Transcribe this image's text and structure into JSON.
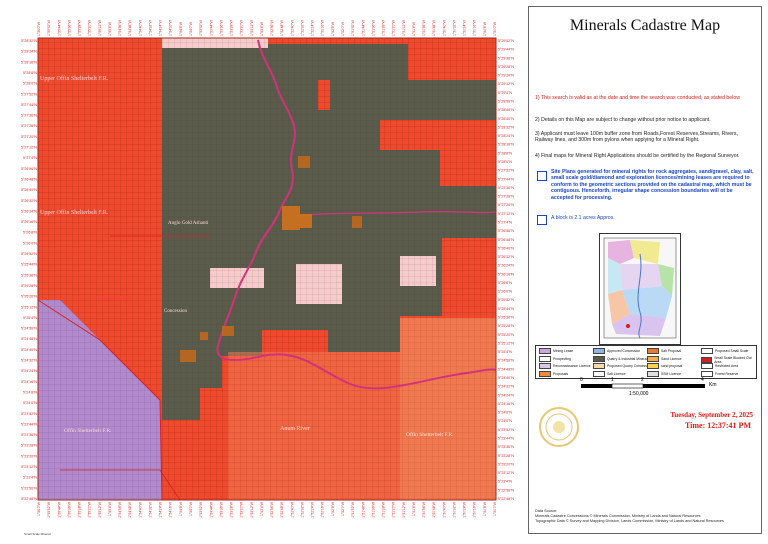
{
  "map": {
    "colors": {
      "cadastre_grid": "#ef4a2e",
      "grid_line": "#b02a18",
      "concession_dark": "#5b5b4c",
      "river": "#d0337a",
      "pink_zone": "#f2c6c6",
      "purple_zone": "#a98ac9",
      "orange_zone": "#ee7a4e",
      "outline": "#d82020"
    },
    "lat_labels_left": [
      "5°28'32\"N",
      "5°28'24\"N",
      "5°28'16\"N",
      "5°28'8\"N",
      "5°28'0\"N",
      "5°27'52\"N",
      "5°27'44\"N",
      "5°27'36\"N",
      "5°27'28\"N",
      "5°27'20\"N",
      "5°27'12\"N",
      "5°27'4\"N",
      "5°26'56\"N",
      "5°26'48\"N",
      "5°26'40\"N",
      "5°26'32\"N",
      "5°26'24\"N",
      "5°26'16\"N",
      "5°26'8\"N",
      "5°26'0\"N",
      "5°25'52\"N",
      "5°25'44\"N",
      "5°25'36\"N",
      "5°25'28\"N",
      "5°25'20\"N",
      "5°25'12\"N",
      "5°25'4\"N",
      "5°24'56\"N",
      "5°24'48\"N",
      "5°24'40\"N",
      "5°24'32\"N",
      "5°24'24\"N",
      "5°24'16\"N",
      "5°24'8\"N",
      "5°24'0\"N",
      "5°23'52\"N",
      "5°23'44\"N",
      "5°23'36\"N",
      "5°23'28\"N",
      "5°23'20\"N",
      "5°23'12\"N",
      "5°23'4\"N",
      "5°22'56\"N",
      "5°22'48\"N"
    ],
    "lat_labels_right": [
      "5°29'52\"N",
      "5°29'44\"N",
      "5°29'36\"N",
      "5°29'28\"N",
      "5°29'20\"N",
      "5°29'12\"N",
      "5°29'4\"N",
      "5°28'56\"N",
      "5°28'48\"N",
      "5°28'40\"N",
      "5°28'32\"N",
      "5°28'24\"N",
      "5°28'16\"N",
      "5°28'8\"N",
      "5°28'0\"N",
      "5°27'52\"N",
      "5°27'44\"N",
      "5°27'36\"N",
      "5°27'28\"N",
      "5°27'20\"N",
      "5°27'12\"N",
      "5°27'4\"N",
      "5°26'56\"N",
      "5°26'48\"N",
      "5°26'40\"N",
      "5°26'32\"N",
      "5°26'24\"N",
      "5°26'16\"N",
      "5°26'8\"N",
      "5°26'0\"N",
      "5°25'52\"N",
      "5°25'44\"N",
      "5°25'36\"N",
      "5°25'28\"N",
      "5°25'20\"N",
      "5°25'12\"N",
      "5°25'4\"N",
      "5°24'56\"N",
      "5°24'48\"N",
      "5°24'40\"N",
      "5°24'32\"N",
      "5°24'24\"N",
      "5°24'16\"N",
      "5°24'8\"N",
      "5°24'0\"N",
      "5°23'52\"N",
      "5°23'44\"N",
      "5°23'36\"N",
      "5°23'28\"N",
      "5°23'20\"N",
      "5°23'12\"N",
      "5°23'4\"N",
      "5°22'56\"N",
      "5°22'48\"N"
    ],
    "lon_labels": [
      "1°56'0\"W",
      "1°55'52\"W",
      "1°55'44\"W",
      "1°55'36\"W",
      "1°55'28\"W",
      "1°55'20\"W",
      "1°55'12\"W",
      "1°55'4\"W",
      "1°54'56\"W",
      "1°54'48\"W",
      "1°54'40\"W",
      "1°54'32\"W",
      "1°54'24\"W",
      "1°54'16\"W",
      "1°54'8\"W",
      "1°54'0\"W",
      "1°53'52\"W",
      "1°53'44\"W",
      "1°53'36\"W",
      "1°53'28\"W",
      "1°53'20\"W",
      "1°53'12\"W",
      "1°53'4\"W",
      "1°52'56\"W",
      "1°52'48\"W",
      "1°52'40\"W",
      "1°52'32\"W",
      "1°52'24\"W",
      "1°52'16\"W",
      "1°52'8\"W",
      "1°52'0\"W",
      "1°51'52\"W",
      "1°51'44\"W",
      "1°51'36\"W",
      "1°51'28\"W",
      "1°51'20\"W",
      "1°51'12\"W",
      "1°51'4\"W",
      "1°50'56\"W",
      "1°50'48\"W",
      "1°50'40\"W",
      "1°50'32\"W",
      "1°50'24\"W",
      "1°50'16\"W",
      "1°50'8\"W",
      "1°50'0\"W"
    ],
    "place_labels": [
      "Upper Offin Shelterbelt F.R.",
      "Anglo Gold Ashanti",
      "Mining Lease",
      "Concession",
      "Anum River",
      "Offin Shelterbelt F.R."
    ],
    "footer_label": "Small Scale Mineral"
  },
  "panel": {
    "title": "Minerals Cadastre Map",
    "notes": [
      {
        "num": "1)",
        "text": "This search is valid as at the date and time the search was conducted, as stated below"
      },
      {
        "num": "2)",
        "text": "Details on this Map are subject to change without prior notice to applicant."
      },
      {
        "num": "3)",
        "text": "Applicant must leave  100m buffer zone from Roads,Forest Reserves,Streams, Rivers, Railway lines, and 300m from pylons when applying for a Mineral Right."
      },
      {
        "num": "4)",
        "text": "Final maps for Mineral Right Applications should be certified by the Regional Surveyor."
      }
    ],
    "site_plans_note": "Site Plans  generated for mineral rights for rock aggregates, sand/gravel, clay, salt, small scale gold/diamond and exploration licences/mining leases are required to conform to the geometric sections provided on the cadastral map, which must be contiguous. Henceforth, irregular shape concession boundaries will ot be accepted for processing.",
    "block_note": "A block is 2.1 acres Approx.",
    "legend": [
      {
        "label": "Mining Lease",
        "color": "#c9a6df"
      },
      {
        "label": "Prospecting",
        "color": "#ffffff"
      },
      {
        "label": "Reconnaissance Licence",
        "color": "#d8c9e8"
      },
      {
        "label": "Proposals",
        "color": "#f08a3c"
      },
      {
        "label": "Approved Concession",
        "color": "#8fb5e0"
      },
      {
        "label": "Quarry & Industrial Minerals",
        "color": "#5b5b4c"
      },
      {
        "label": "Proposed Quarry Concession",
        "color": "#f7d9a8"
      },
      {
        "label": "Salt Licence",
        "color": "#ffffff"
      },
      {
        "label": "Salt Proposal",
        "color": "#e97b2c"
      },
      {
        "label": "Sand Licence",
        "color": "#f2b14a"
      },
      {
        "label": "sand proposal",
        "color": "#ffd24a"
      },
      {
        "label": "SSM Licence",
        "color": "#e0e0e0"
      },
      {
        "label": "Proposed Small Scale",
        "color": "#ffffff"
      },
      {
        "label": "Small Scale Blocked Out Area",
        "color": "#cc2222"
      },
      {
        "label": "Restricted Area",
        "color": "#ffffff"
      },
      {
        "label": "Forest Reserve",
        "color": "#ffffff"
      }
    ],
    "scale": {
      "ticks": [
        "0",
        "1",
        "2",
        "4"
      ],
      "unit": "Km",
      "ratio": "1:50,000"
    },
    "date": "Tuesday, September 2, 2025",
    "time": "Time: 12:37:41 PM",
    "source_lines": [
      "Data Source:",
      "Minerals Cadastre Concessions © Minerals Commission, Ministry of Lands and Natural Resources",
      "Topographic Data © Survey and Mapping Division, Lands Commission, Ministry of Lands and Natural Resources"
    ]
  }
}
